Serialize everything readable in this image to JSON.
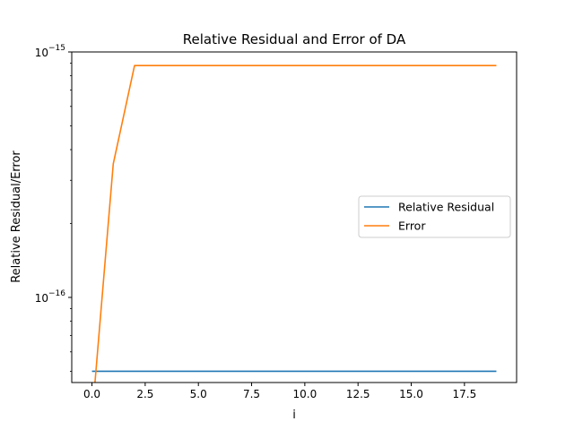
{
  "chart_data": {
    "type": "line",
    "title": "Relative Residual and Error of DA",
    "xlabel": "i",
    "ylabel": "Relative Residual/Error",
    "yscale": "log",
    "xlim": [
      -0.95,
      19.95
    ],
    "ylim": [
      4.5e-17,
      1e-15
    ],
    "grid": false,
    "legend_position": "center-right",
    "x_ticks": [
      {
        "value": 0.0,
        "label": "0.0"
      },
      {
        "value": 2.5,
        "label": "2.5"
      },
      {
        "value": 5.0,
        "label": "5.0"
      },
      {
        "value": 7.5,
        "label": "7.5"
      },
      {
        "value": 10.0,
        "label": "10.0"
      },
      {
        "value": 12.5,
        "label": "12.5"
      },
      {
        "value": 15.0,
        "label": "15.0"
      },
      {
        "value": 17.5,
        "label": "17.5"
      }
    ],
    "y_ticks": [
      {
        "value": 1e-15,
        "base": "10",
        "exp": "−15"
      },
      {
        "value": 1e-16,
        "base": "10",
        "exp": "−16"
      }
    ],
    "x": [
      0,
      1,
      2,
      3,
      4,
      5,
      6,
      7,
      8,
      9,
      10,
      11,
      12,
      13,
      14,
      15,
      16,
      17,
      18,
      19
    ],
    "series": [
      {
        "name": "Relative Residual",
        "color": "#1f77b4",
        "values": [
          5e-17,
          5e-17,
          5e-17,
          5e-17,
          5e-17,
          5e-17,
          5e-17,
          5e-17,
          5e-17,
          5e-17,
          5e-17,
          5e-17,
          5e-17,
          5e-17,
          5e-17,
          5e-17,
          5e-17,
          5e-17,
          5e-17,
          5e-17
        ]
      },
      {
        "name": "Error",
        "color": "#ff7f0e",
        "values": [
          0,
          3.5e-16,
          8.8e-16,
          8.8e-16,
          8.8e-16,
          8.8e-16,
          8.8e-16,
          8.8e-16,
          8.8e-16,
          8.8e-16,
          8.8e-16,
          8.8e-16,
          8.8e-16,
          8.8e-16,
          8.8e-16,
          8.8e-16,
          8.8e-16,
          8.8e-16,
          8.8e-16,
          8.8e-16
        ]
      }
    ]
  }
}
